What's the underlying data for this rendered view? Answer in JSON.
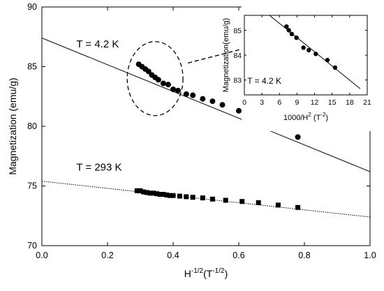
{
  "chart_data": [
    {
      "type": "scatter",
      "title": "",
      "xlabel": "H^-1/2 (T^-1/2)",
      "xlabel_parts": {
        "base": "H",
        "exp": "-1/2",
        "unit_open": "(T",
        "unit_exp": "-1/2",
        "unit_close": ")"
      },
      "ylabel": "Magnetization (emu/g)",
      "xlim": [
        0.0,
        1.0
      ],
      "ylim": [
        70,
        90
      ],
      "xticks": [
        "0.0",
        "0.2",
        "0.4",
        "0.6",
        "0.8",
        "1.0"
      ],
      "yticks": [
        "70",
        "75",
        "80",
        "85",
        "90"
      ],
      "xtick_values": [
        0.0,
        0.2,
        0.4,
        0.6,
        0.8,
        1.0
      ],
      "ytick_values": [
        70,
        75,
        80,
        85,
        90
      ],
      "grid": false,
      "series": [
        {
          "name": "T = 4.2 K",
          "marker": "circle",
          "points": [
            [
              0.295,
              85.2
            ],
            [
              0.305,
              85.0
            ],
            [
              0.315,
              84.8
            ],
            [
              0.325,
              84.6
            ],
            [
              0.335,
              84.3
            ],
            [
              0.345,
              84.1
            ],
            [
              0.355,
              83.9
            ],
            [
              0.37,
              83.6
            ],
            [
              0.385,
              83.5
            ],
            [
              0.4,
              83.1
            ],
            [
              0.415,
              83.0
            ],
            [
              0.44,
              82.7
            ],
            [
              0.46,
              82.6
            ],
            [
              0.49,
              82.3
            ],
            [
              0.52,
              82.1
            ],
            [
              0.55,
              81.8
            ],
            [
              0.6,
              81.3
            ],
            [
              0.65,
              80.9
            ],
            [
              0.72,
              80.2
            ],
            [
              0.78,
              79.1
            ]
          ],
          "fit_line": {
            "x": [
              0.0,
              1.0
            ],
            "y": [
              87.4,
              76.2
            ],
            "style": "solid"
          }
        },
        {
          "name": "T = 293 K",
          "marker": "square",
          "points": [
            [
              0.29,
              74.6
            ],
            [
              0.3,
              74.6
            ],
            [
              0.31,
              74.5
            ],
            [
              0.32,
              74.45
            ],
            [
              0.33,
              74.4
            ],
            [
              0.34,
              74.4
            ],
            [
              0.35,
              74.35
            ],
            [
              0.36,
              74.3
            ],
            [
              0.37,
              74.3
            ],
            [
              0.38,
              74.25
            ],
            [
              0.39,
              74.2
            ],
            [
              0.4,
              74.2
            ],
            [
              0.42,
              74.15
            ],
            [
              0.44,
              74.1
            ],
            [
              0.46,
              74.05
            ],
            [
              0.49,
              74.0
            ],
            [
              0.52,
              73.9
            ],
            [
              0.56,
              73.8
            ],
            [
              0.61,
              73.7
            ],
            [
              0.66,
              73.6
            ],
            [
              0.72,
              73.4
            ],
            [
              0.78,
              73.2
            ]
          ],
          "fit_line": {
            "x": [
              0.0,
              1.0
            ],
            "y": [
              75.4,
              72.4
            ],
            "style": "dotted"
          }
        }
      ],
      "annotations": [
        {
          "text": "T = 4.2 K",
          "x": 0.105,
          "y": 86.6
        },
        {
          "text": "T = 293 K",
          "x": 0.105,
          "y": 76.3
        }
      ],
      "highlight_circle": {
        "x_center": 0.345,
        "y_center": 84.0,
        "x_radius": 0.085,
        "y_radius": 3.1
      },
      "arrow": {
        "from": [
          0.445,
          85.3
        ],
        "to": [
          0.655,
          86.8
        ],
        "style": "dashed"
      }
    },
    {
      "type": "scatter",
      "title": "",
      "xlabel": "1000/H^2 (T^-2)",
      "xlabel_parts": {
        "base": "1000/H",
        "exp": "2",
        "unit_open": " (T",
        "unit_exp": "-2",
        "unit_close": ")"
      },
      "ylabel": "Magnetization(emu/g)",
      "xlim": [
        0,
        21
      ],
      "ylim": [
        82.4,
        85.6
      ],
      "xticks": [
        "0",
        "3",
        "6",
        "9",
        "12",
        "15",
        "18",
        "21"
      ],
      "yticks": [
        "83",
        "84",
        "85"
      ],
      "xtick_values": [
        0,
        3,
        6,
        9,
        12,
        15,
        18,
        21
      ],
      "ytick_values": [
        83,
        84,
        85
      ],
      "grid": false,
      "series": [
        {
          "name": "T = 4.2 K",
          "marker": "circle",
          "points": [
            [
              7.2,
              85.15
            ],
            [
              7.6,
              85.0
            ],
            [
              8.1,
              84.85
            ],
            [
              8.9,
              84.7
            ],
            [
              10.1,
              84.3
            ],
            [
              11.0,
              84.2
            ],
            [
              12.2,
              84.05
            ],
            [
              14.2,
              83.8
            ],
            [
              15.5,
              83.5
            ]
          ],
          "fit_line": {
            "x": [
              4.3,
              19.8
            ],
            "y": [
              85.6,
              82.65
            ],
            "style": "solid"
          }
        }
      ],
      "annotations": [
        {
          "text": "T = 4.2 K",
          "x": 0.5,
          "y": 82.85
        }
      ]
    }
  ]
}
